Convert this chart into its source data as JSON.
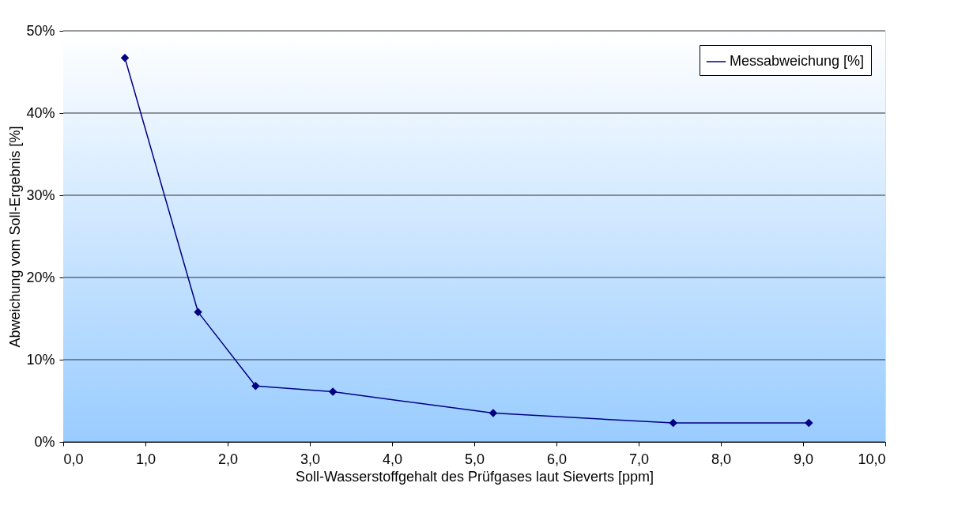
{
  "chart_data": {
    "type": "line",
    "xlabel": "Soll-Wasserstoffgehalt des Prüfgases laut Sieverts [ppm]",
    "ylabel": "Abweichung vom Soll-Ergebnis [%]",
    "x": [
      0.75,
      1.64,
      2.34,
      3.28,
      5.23,
      7.42,
      9.07
    ],
    "series": [
      {
        "name": "Messabweichung [%]",
        "color": "#000080",
        "values": [
          46.7,
          15.8,
          6.8,
          6.1,
          3.5,
          2.3,
          2.3
        ]
      }
    ],
    "xlim": [
      0,
      10
    ],
    "ylim": [
      0,
      50
    ],
    "xticks": [
      {
        "value": 0,
        "label": "0,0"
      },
      {
        "value": 1,
        "label": "1,0"
      },
      {
        "value": 2,
        "label": "2,0"
      },
      {
        "value": 3,
        "label": "3,0"
      },
      {
        "value": 4,
        "label": "4,0"
      },
      {
        "value": 5,
        "label": "5,0"
      },
      {
        "value": 6,
        "label": "6,0"
      },
      {
        "value": 7,
        "label": "7,0"
      },
      {
        "value": 8,
        "label": "8,0"
      },
      {
        "value": 9,
        "label": "9,0"
      },
      {
        "value": 10,
        "label": "10,0"
      }
    ],
    "yticks": [
      {
        "value": 0,
        "label": "0%"
      },
      {
        "value": 10,
        "label": "10%"
      },
      {
        "value": 20,
        "label": "20%"
      },
      {
        "value": 30,
        "label": "30%"
      },
      {
        "value": 40,
        "label": "40%"
      },
      {
        "value": 50,
        "label": "50%"
      }
    ],
    "grid": "y",
    "legend": "top right",
    "marker": "diamond",
    "line_style": "solid"
  }
}
